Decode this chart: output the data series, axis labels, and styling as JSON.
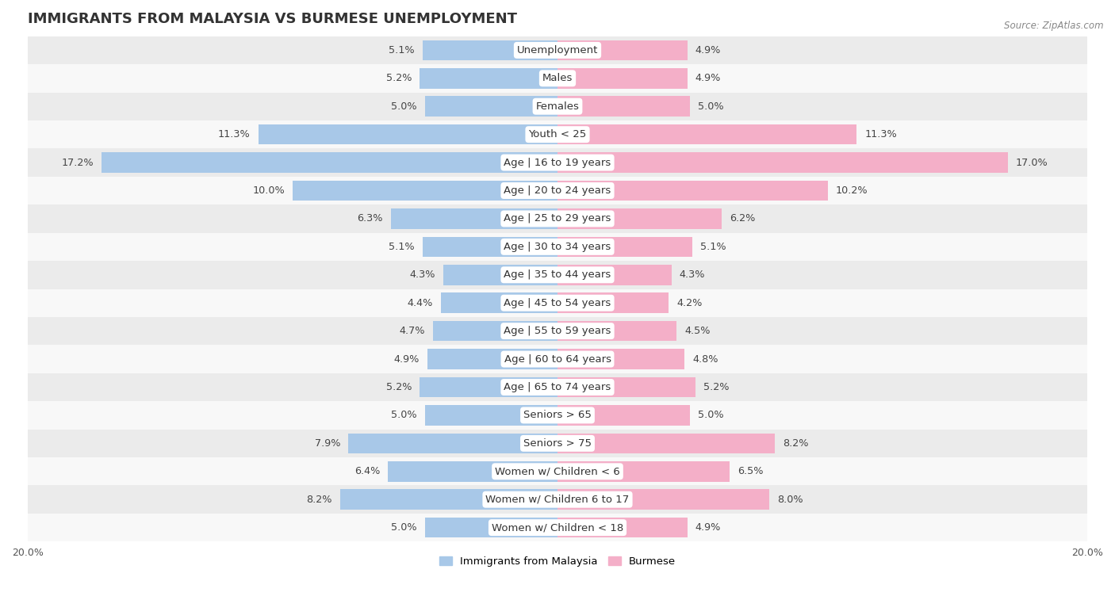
{
  "title": "IMMIGRANTS FROM MALAYSIA VS BURMESE UNEMPLOYMENT",
  "source": "Source: ZipAtlas.com",
  "categories": [
    "Unemployment",
    "Males",
    "Females",
    "Youth < 25",
    "Age | 16 to 19 years",
    "Age | 20 to 24 years",
    "Age | 25 to 29 years",
    "Age | 30 to 34 years",
    "Age | 35 to 44 years",
    "Age | 45 to 54 years",
    "Age | 55 to 59 years",
    "Age | 60 to 64 years",
    "Age | 65 to 74 years",
    "Seniors > 65",
    "Seniors > 75",
    "Women w/ Children < 6",
    "Women w/ Children 6 to 17",
    "Women w/ Children < 18"
  ],
  "malaysia_values": [
    5.1,
    5.2,
    5.0,
    11.3,
    17.2,
    10.0,
    6.3,
    5.1,
    4.3,
    4.4,
    4.7,
    4.9,
    5.2,
    5.0,
    7.9,
    6.4,
    8.2,
    5.0
  ],
  "burmese_values": [
    4.9,
    4.9,
    5.0,
    11.3,
    17.0,
    10.2,
    6.2,
    5.1,
    4.3,
    4.2,
    4.5,
    4.8,
    5.2,
    5.0,
    8.2,
    6.5,
    8.0,
    4.9
  ],
  "malaysia_color": "#a8c8e8",
  "burmese_color": "#f4afc8",
  "malaysia_color_dark": "#5b9fce",
  "burmese_color_dark": "#e87fa0",
  "malaysia_label": "Immigrants from Malaysia",
  "burmese_label": "Burmese",
  "xlim": 20.0,
  "bar_height": 0.72,
  "bg_color_odd": "#ebebeb",
  "bg_color_even": "#f8f8f8",
  "title_fontsize": 13,
  "label_fontsize": 9.5,
  "value_fontsize": 9.2
}
